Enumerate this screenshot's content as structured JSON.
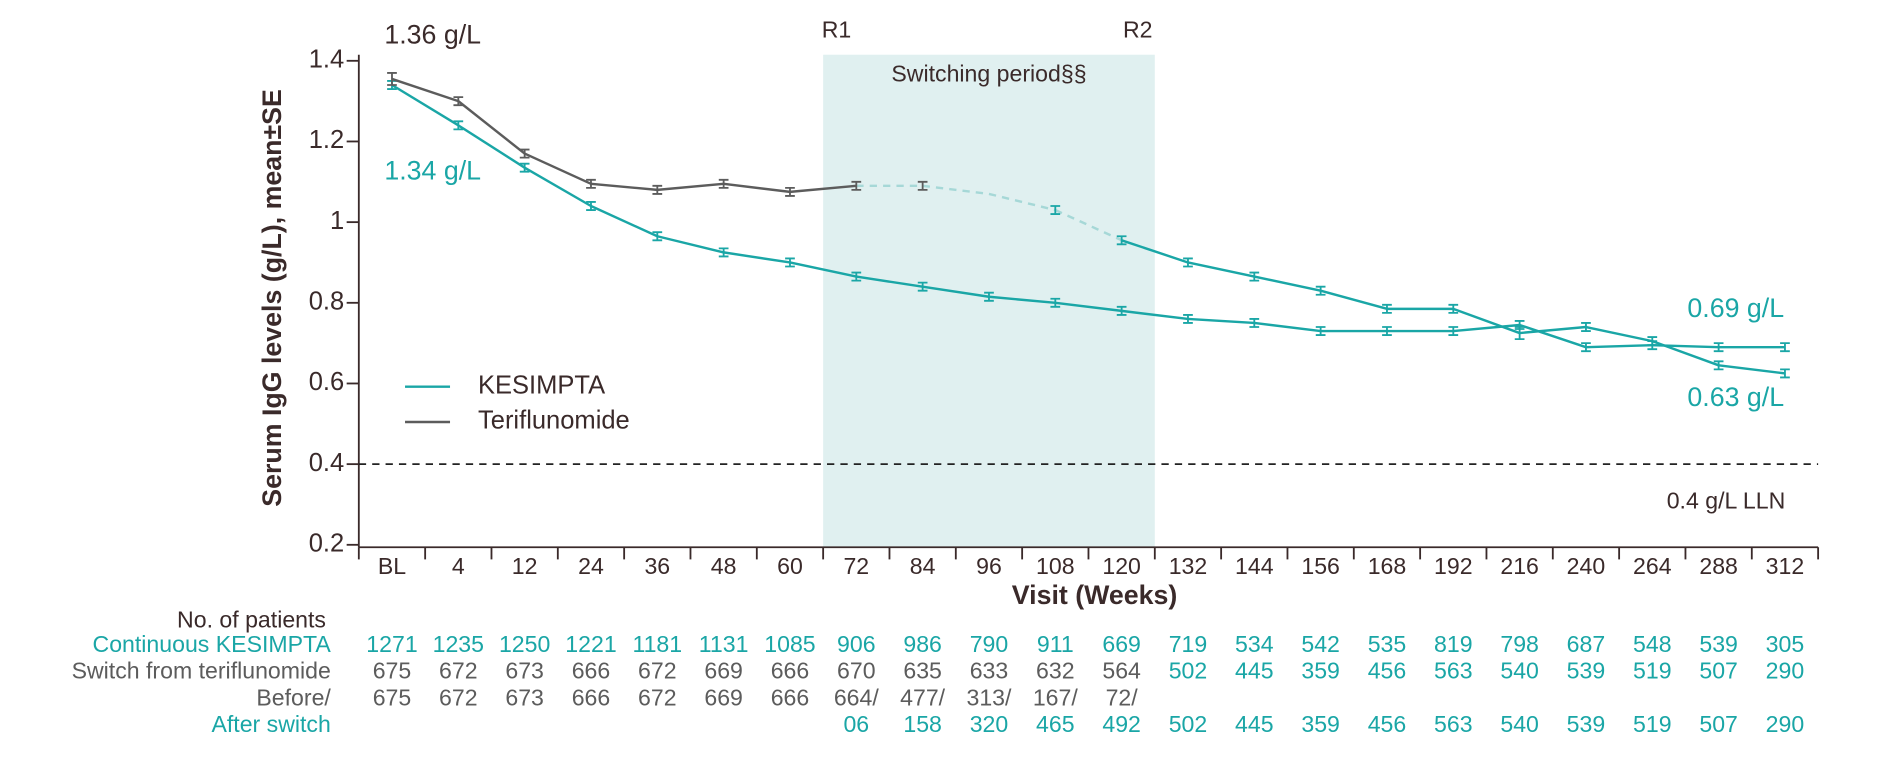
{
  "chart_data": {
    "type": "line",
    "y_label": "Serum IgG levels (g/L), mean±SE",
    "x_label": "Visit (Weeks)",
    "categories": [
      "BL",
      "4",
      "12",
      "24",
      "36",
      "48",
      "60",
      "72",
      "84",
      "96",
      "108",
      "120",
      "132",
      "144",
      "156",
      "168",
      "192",
      "216",
      "240",
      "264",
      "288",
      "312"
    ],
    "ylim": [
      0.2,
      1.4
    ],
    "yticks": [
      0.2,
      0.4,
      0.6,
      0.8,
      1,
      1.2,
      1.4
    ],
    "series": [
      {
        "name": "KESIMPTA",
        "color": "#1aa6a6",
        "values": [
          1.34,
          1.24,
          1.135,
          1.04,
          0.965,
          0.925,
          0.9,
          0.865,
          0.84,
          0.815,
          0.8,
          0.78,
          0.76,
          0.75,
          0.73,
          0.73,
          0.73,
          0.745,
          0.69,
          0.695,
          0.69,
          0.69
        ],
        "errors": [
          0.01,
          0.01,
          0.01,
          0.01,
          0.01,
          0.01,
          0.01,
          0.01,
          0.01,
          0.01,
          0.01,
          0.01,
          0.01,
          0.01,
          0.01,
          0.01,
          0.01,
          0.01,
          0.01,
          0.01,
          0.01,
          0.01
        ]
      },
      {
        "name": "Teriflunomide",
        "color": "#5c5c5c",
        "dashed_color": "#a6d8d7",
        "values": [
          1.355,
          1.3,
          1.17,
          1.095,
          1.08,
          1.095,
          1.075,
          1.09,
          1.09,
          1.07,
          1.03,
          0.955,
          0.9,
          0.865,
          0.83,
          0.785,
          0.785,
          0.725,
          0.74,
          0.705,
          0.645,
          0.625
        ],
        "errors": [
          0.015,
          0.01,
          0.01,
          0.01,
          0.01,
          0.01,
          0.01,
          0.01,
          0.01,
          null,
          0.01,
          0.01,
          0.01,
          0.01,
          0.01,
          0.01,
          0.01,
          0.015,
          0.01,
          0.01,
          0.01,
          0.01
        ]
      }
    ],
    "switching_period": {
      "label": "Switching period§§",
      "color": "#e0f0f0",
      "markers": [
        {
          "label": "R1",
          "at": "72"
        },
        {
          "label": "R2",
          "at": "120"
        }
      ]
    },
    "reference_line": {
      "value": 0.4,
      "label": "0.4 g/L LLN"
    },
    "annotations": [
      {
        "text": "1.36 g/L",
        "color": "#3a2a2a"
      },
      {
        "text": "1.34 g/L",
        "color": "#1aa6a6"
      },
      {
        "text": "0.69 g/L",
        "color": "#1aa6a6"
      },
      {
        "text": "0.63 g/L",
        "color": "#1aa6a6"
      }
    ],
    "legend": "left",
    "table": {
      "title": "No. of patients",
      "rows": [
        {
          "label": "Continuous KESIMPTA",
          "color": "#1aa6a6",
          "values": [
            "1271",
            "1235",
            "1250",
            "1221",
            "1181",
            "1131",
            "1085",
            "906",
            "986",
            "790",
            "911",
            "669",
            "719",
            "534",
            "542",
            "535",
            "819",
            "798",
            "687",
            "548",
            "539",
            "305"
          ]
        },
        {
          "label": "Switch from teriflunomide",
          "color": "#5c5c5c",
          "values": [
            "675",
            "672",
            "673",
            "666",
            "672",
            "669",
            "666",
            "670",
            "635",
            "633",
            "632",
            "564",
            "502",
            "445",
            "359",
            "456",
            "563",
            "540",
            "539",
            "519",
            "507",
            "290"
          ]
        },
        {
          "label": "Before/",
          "color": "#5c5c5c",
          "values": [
            "675",
            "672",
            "673",
            "666",
            "672",
            "669",
            "666",
            "664/",
            "477/",
            "313/",
            "167/",
            "72/",
            null,
            null,
            null,
            null,
            null,
            null,
            null,
            null,
            null,
            null
          ]
        },
        {
          "label": "After switch",
          "color": "#1aa6a6",
          "values": [
            null,
            null,
            null,
            null,
            null,
            null,
            null,
            "06",
            "158",
            "320",
            "465",
            "492",
            "502",
            "445",
            "359",
            "456",
            "563",
            "540",
            "539",
            "519",
            "507",
            "290"
          ]
        }
      ]
    }
  }
}
